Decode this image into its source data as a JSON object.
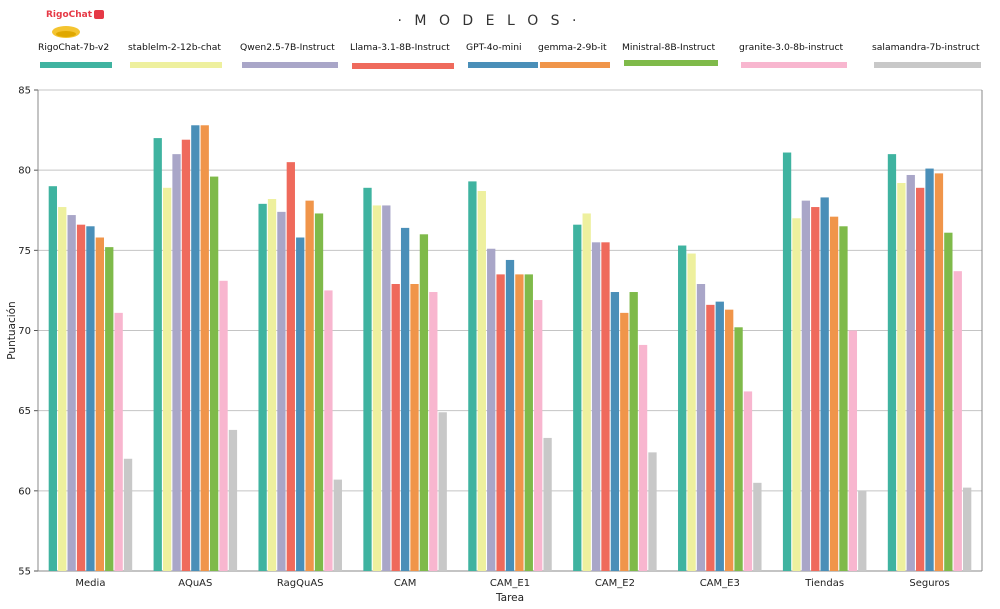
{
  "logo": {
    "text": "RigoChat"
  },
  "chart_data": {
    "type": "bar",
    "title": "· M O D E L O S ·",
    "xlabel": "Tarea",
    "ylabel": "Puntuación",
    "ylim": [
      55,
      85
    ],
    "yticks": [
      55,
      60,
      65,
      70,
      75,
      80,
      85
    ],
    "grid": "horizontal",
    "legend_position": "top",
    "categories": [
      "Media",
      "AQuAS",
      "RagQuAS",
      "CAM",
      "CAM_E1",
      "CAM_E2",
      "CAM_E3",
      "Tiendas",
      "Seguros"
    ],
    "series": [
      {
        "name": "RigoChat-7b-v2",
        "color": "#3fb3a0",
        "values": [
          79.0,
          82.0,
          77.9,
          78.9,
          79.3,
          76.6,
          75.3,
          81.1,
          81.0
        ]
      },
      {
        "name": "stablelm-2-12b-chat",
        "color": "#eef09e",
        "values": [
          77.7,
          78.9,
          78.2,
          77.8,
          78.7,
          77.3,
          74.8,
          77.0,
          79.2
        ]
      },
      {
        "name": "Qwen2.5-7B-Instruct",
        "color": "#a9a6c8",
        "values": [
          77.2,
          81.0,
          77.4,
          77.8,
          75.1,
          75.5,
          72.9,
          78.1,
          79.7
        ]
      },
      {
        "name": "Llama-3.1-8B-Instruct",
        "color": "#ef6a5c",
        "values": [
          76.6,
          81.9,
          80.5,
          72.9,
          73.5,
          75.5,
          71.6,
          77.7,
          78.9
        ]
      },
      {
        "name": "GPT-4o-mini",
        "color": "#4a8fb8",
        "values": [
          76.5,
          82.8,
          75.8,
          76.4,
          74.4,
          72.4,
          71.8,
          78.3,
          80.1
        ]
      },
      {
        "name": "gemma-2-9b-it",
        "color": "#f0954a",
        "values": [
          75.8,
          82.8,
          78.1,
          72.9,
          73.5,
          71.1,
          71.3,
          77.1,
          79.8
        ]
      },
      {
        "name": "Ministral-8B-Instruct",
        "color": "#7fba4a",
        "values": [
          75.2,
          79.6,
          77.3,
          76.0,
          73.5,
          72.4,
          70.2,
          76.5,
          76.1
        ]
      },
      {
        "name": "granite-3.0-8b-instruct",
        "color": "#f8b6cf",
        "values": [
          71.1,
          73.1,
          72.5,
          72.4,
          71.9,
          69.1,
          66.2,
          70.0,
          73.7
        ]
      },
      {
        "name": "salamandra-7b-instruct",
        "color": "#c8c8c8",
        "values": [
          62.0,
          63.8,
          60.7,
          64.9,
          63.3,
          62.4,
          60.5,
          60.0,
          60.2
        ]
      }
    ]
  }
}
